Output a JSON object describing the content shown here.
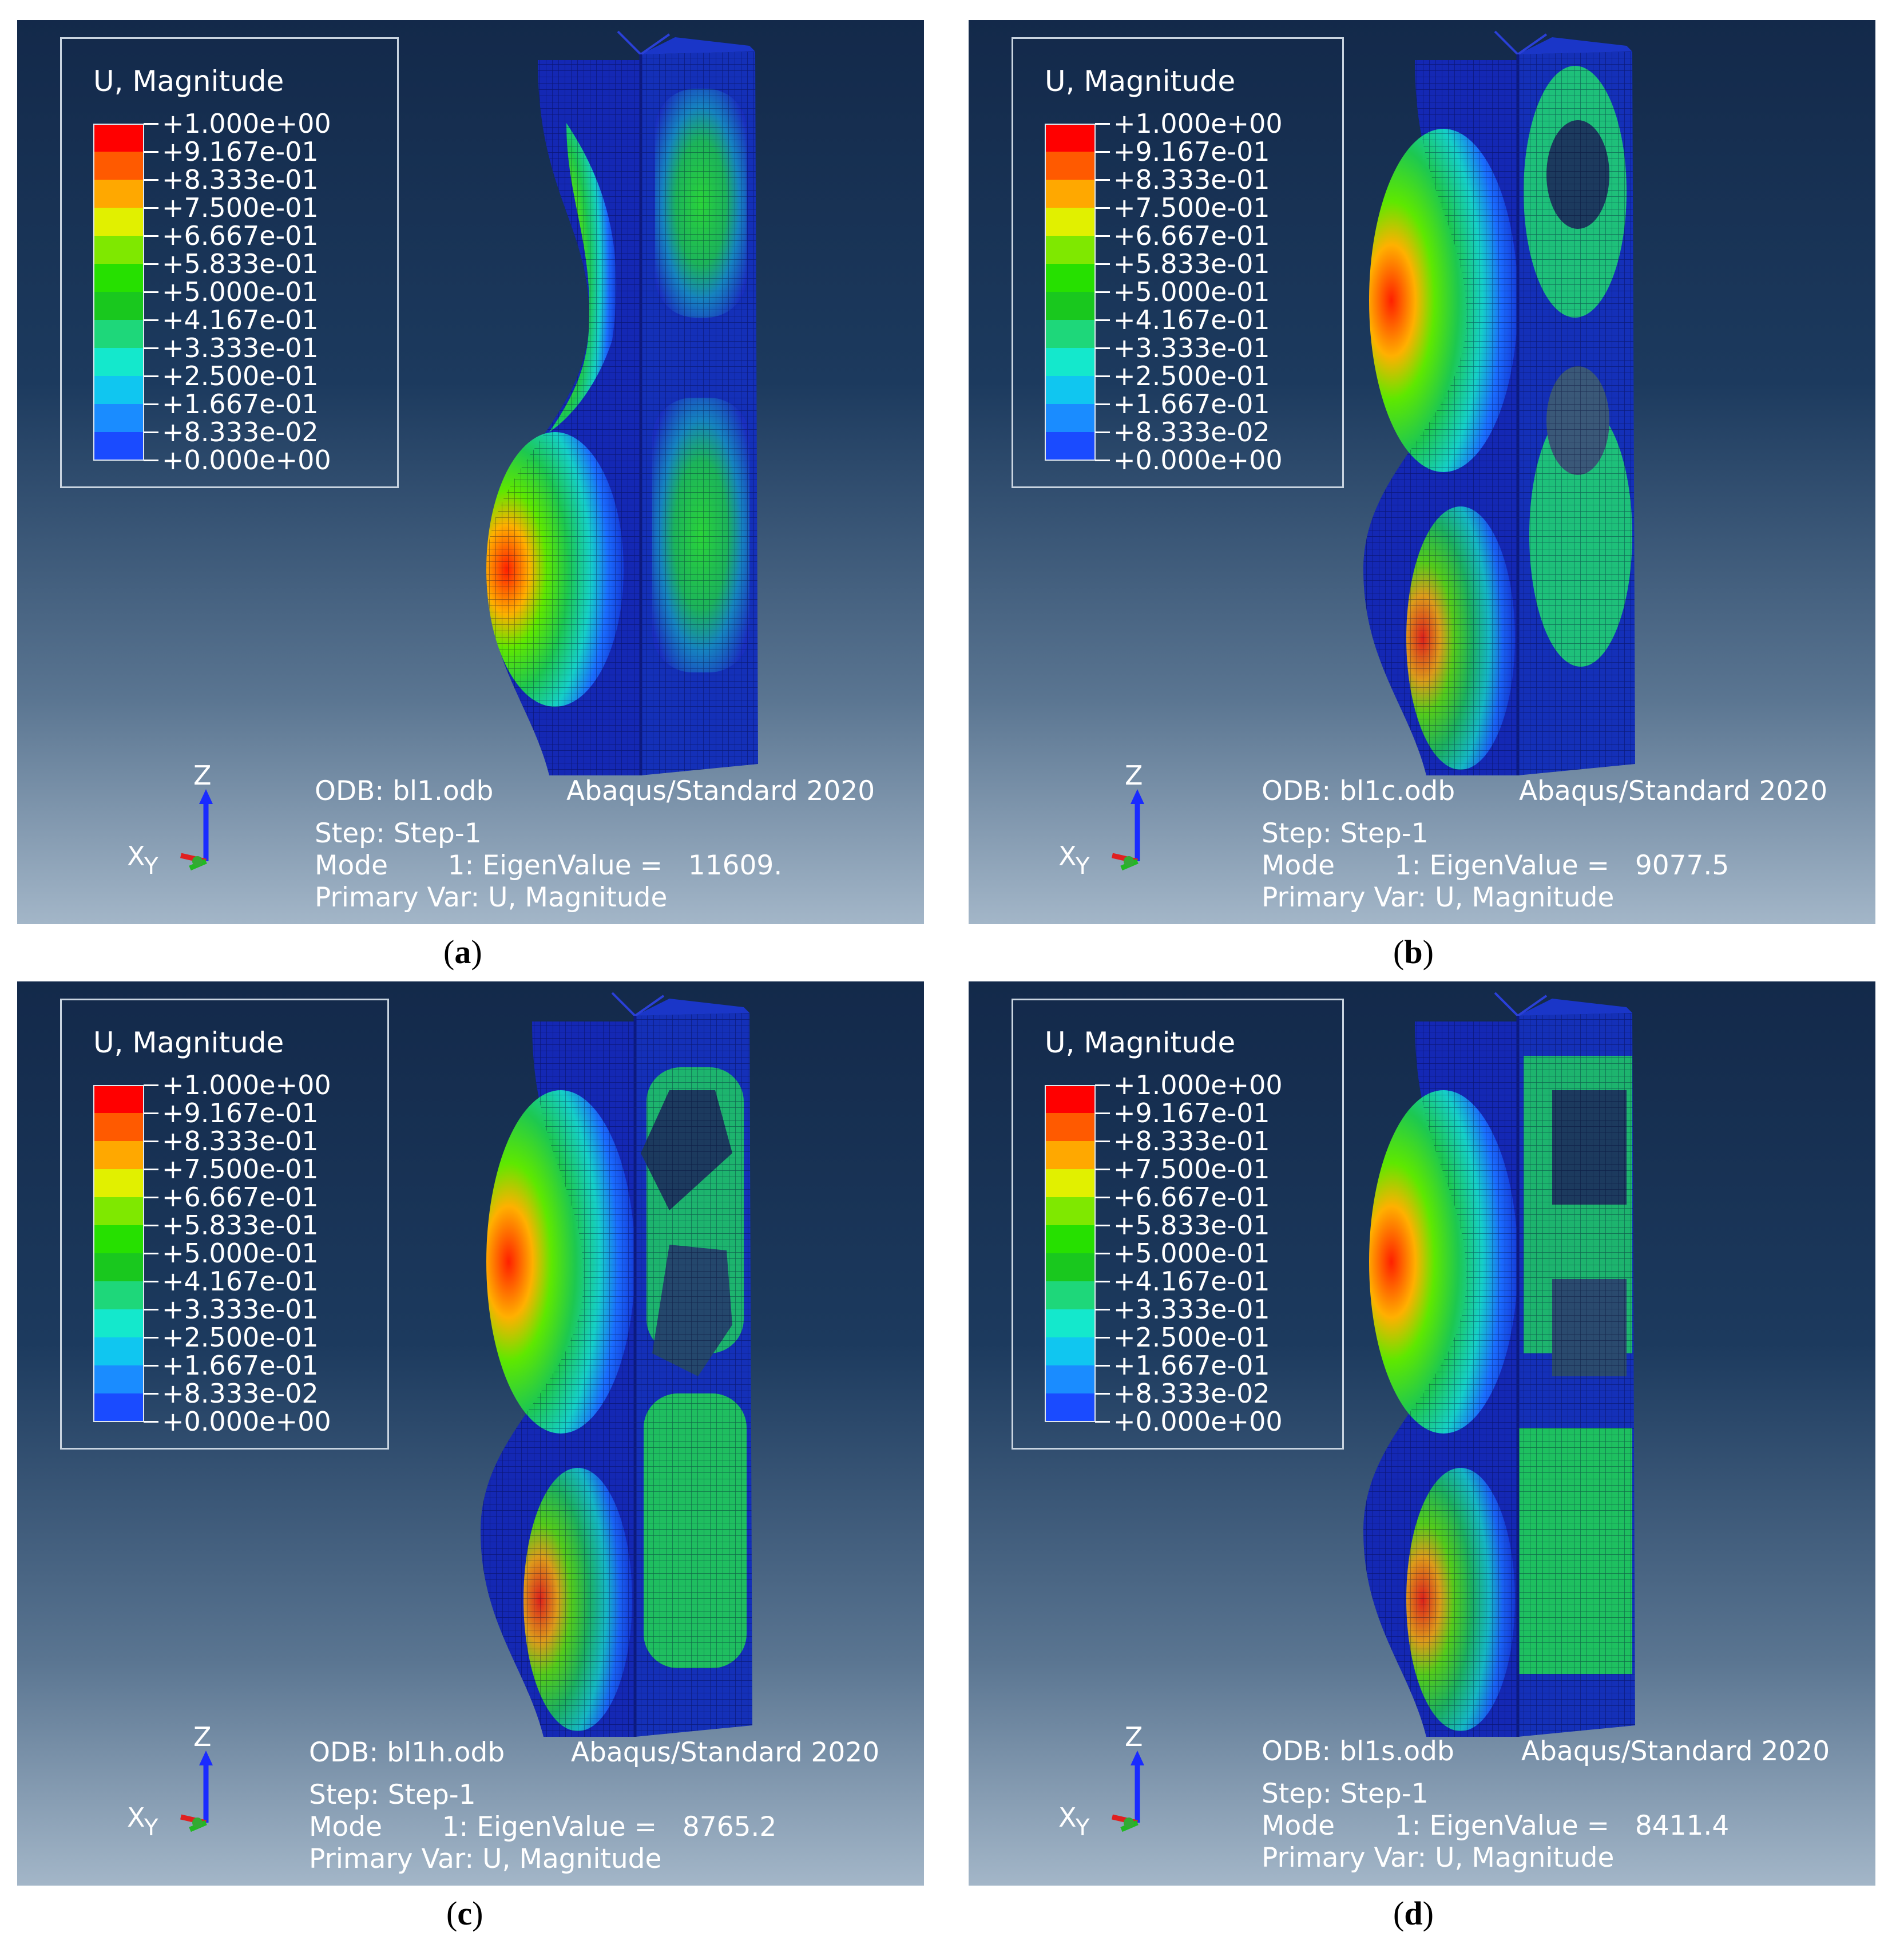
{
  "legend": {
    "title": "U, Magnitude",
    "labels": [
      "+1.000e+00",
      "+9.167e-01",
      "+8.333e-01",
      "+7.500e-01",
      "+6.667e-01",
      "+5.833e-01",
      "+5.000e-01",
      "+4.167e-01",
      "+3.333e-01",
      "+2.500e-01",
      "+1.667e-01",
      "+8.333e-02",
      "+0.000e+00"
    ],
    "colors": [
      "#ff0000",
      "#ff5a00",
      "#ffa800",
      "#e1f000",
      "#7fe800",
      "#26e000",
      "#19c81e",
      "#1ed77a",
      "#14e8cc",
      "#10c6f0",
      "#1a8cff",
      "#1a4bff",
      "#0a0adc"
    ]
  },
  "axis": {
    "z": "Z",
    "x": "X",
    "y": "Y"
  },
  "panels": [
    {
      "odb": "ODB: bl1.odb",
      "solver": "Abaqus/Standard 2020",
      "step": "Step: Step-1",
      "mode": "Mode       1: EigenValue =   11609.",
      "primary": "Primary Var: U, Magnitude",
      "caption_letter": "a",
      "variant": "plain"
    },
    {
      "odb": "ODB: bl1c.odb",
      "solver": "Abaqus/Standard 2020",
      "step": "Step: Step-1",
      "mode": "Mode       1: EigenValue =   9077.5",
      "primary": "Primary Var: U, Magnitude",
      "caption_letter": "b",
      "variant": "circle"
    },
    {
      "odb": "ODB: bl1h.odb",
      "solver": "Abaqus/Standard 2020",
      "step": "Step: Step-1",
      "mode": "Mode       1: EigenValue =   8765.2",
      "primary": "Primary Var: U, Magnitude",
      "caption_letter": "c",
      "variant": "hexagon"
    },
    {
      "odb": "ODB: bl1s.odb",
      "solver": "Abaqus/Standard 2020",
      "step": "Step: Step-1",
      "mode": "Mode       1: EigenValue =   8411.4",
      "primary": "Primary Var: U, Magnitude",
      "caption_letter": "d",
      "variant": "square"
    }
  ]
}
